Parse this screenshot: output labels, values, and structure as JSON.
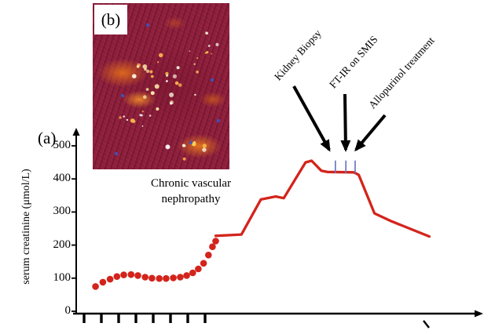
{
  "figure": {
    "panel_a_label": "(a)",
    "panel_b_label": "(b)",
    "inset_caption_line1": "Chronic vascular",
    "inset_caption_line2": "nephropathy"
  },
  "annotations": [
    {
      "label": "Kidney Biopsy",
      "arrow": [
        374,
        110,
        419,
        191
      ]
    },
    {
      "label": "FT-IR on SMIS",
      "arrow": [
        439,
        120,
        440,
        191
      ]
    },
    {
      "label": "Allopurinol treatment",
      "arrow": [
        490,
        147,
        453,
        191
      ]
    }
  ],
  "chart_data": {
    "type": "line",
    "title": "",
    "xlabel": "",
    "ylabel": "serum creatinine (μmol/L)",
    "ylim": [
      0,
      500
    ],
    "yticks": [
      0,
      100,
      200,
      300,
      400,
      500
    ],
    "x_note": "x axis is unlabeled time (tick labels cut off at figure edge); x stored as 0-1 fraction of axis length",
    "grid": false,
    "legend": "none",
    "series": [
      {
        "name": "early follow-up (dotted markers)",
        "style": "dots",
        "color": "#d3241c",
        "points": [
          [
            0.048,
            75
          ],
          [
            0.066,
            88
          ],
          [
            0.084,
            97
          ],
          [
            0.101,
            105
          ],
          [
            0.118,
            110
          ],
          [
            0.136,
            111
          ],
          [
            0.153,
            108
          ],
          [
            0.171,
            103
          ],
          [
            0.188,
            100
          ],
          [
            0.206,
            99
          ],
          [
            0.223,
            99
          ],
          [
            0.241,
            101
          ],
          [
            0.258,
            103
          ],
          [
            0.274,
            108
          ],
          [
            0.289,
            116
          ],
          [
            0.303,
            128
          ],
          [
            0.316,
            145
          ],
          [
            0.328,
            170
          ],
          [
            0.338,
            195
          ],
          [
            0.346,
            212
          ]
        ]
      },
      {
        "name": "late follow-up (solid line)",
        "style": "line",
        "color": "#d3241c",
        "points": [
          [
            0.346,
            228
          ],
          [
            0.41,
            232
          ],
          [
            0.458,
            338
          ],
          [
            0.495,
            347
          ],
          [
            0.515,
            342
          ],
          [
            0.569,
            450
          ],
          [
            0.584,
            455
          ],
          [
            0.608,
            425
          ],
          [
            0.623,
            421
          ],
          [
            0.689,
            420
          ],
          [
            0.701,
            412
          ],
          [
            0.74,
            296
          ],
          [
            0.782,
            272
          ],
          [
            0.876,
            226
          ]
        ]
      }
    ],
    "event_markers": {
      "color": "#6b79c0",
      "value": 420,
      "t": [
        0.643,
        0.669,
        0.692
      ]
    }
  },
  "colors": {
    "series_red": "#d3241c",
    "marker_blue": "#6b79c0",
    "axis_black": "#000000",
    "inset_crimson": "#8b2140"
  }
}
